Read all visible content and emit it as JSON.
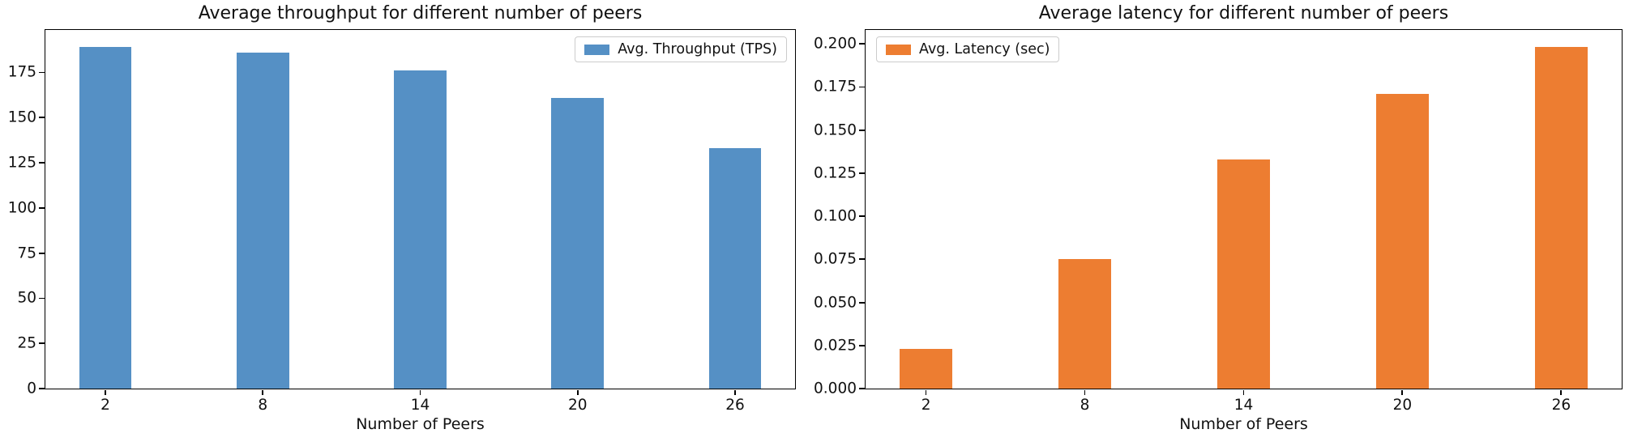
{
  "figure": {
    "background_color": "#ffffff",
    "text_color": "#111111"
  },
  "chart_data": [
    {
      "type": "bar",
      "title": "Average throughput for different number of peers",
      "xlabel": "Number of Peers",
      "ylabel": "",
      "categories": [
        "2",
        "8",
        "14",
        "20",
        "26"
      ],
      "values": [
        189,
        186,
        176,
        161,
        133
      ],
      "series_name": "Avg. Throughput (TPS)",
      "bar_color": "#5590c5",
      "ylim": [
        0,
        198.5
      ],
      "yticks": [
        0,
        25,
        50,
        75,
        100,
        125,
        150,
        175
      ],
      "ytick_labels": [
        "0",
        "25",
        "50",
        "75",
        "100",
        "125",
        "150",
        "175"
      ],
      "legend_position": "top-right",
      "grid": false
    },
    {
      "type": "bar",
      "title": "Average latency for different number of peers",
      "xlabel": "Number of Peers",
      "ylabel": "",
      "categories": [
        "2",
        "8",
        "14",
        "20",
        "26"
      ],
      "values": [
        0.023,
        0.075,
        0.133,
        0.171,
        0.198
      ],
      "series_name": "Avg. Latency (sec)",
      "bar_color": "#ed7d31",
      "ylim": [
        0,
        0.208
      ],
      "yticks": [
        0,
        0.025,
        0.05,
        0.075,
        0.1,
        0.125,
        0.15,
        0.175,
        0.2
      ],
      "ytick_labels": [
        "0.000",
        "0.025",
        "0.050",
        "0.075",
        "0.100",
        "0.125",
        "0.150",
        "0.175",
        "0.200"
      ],
      "legend_position": "top-left",
      "grid": false
    }
  ]
}
